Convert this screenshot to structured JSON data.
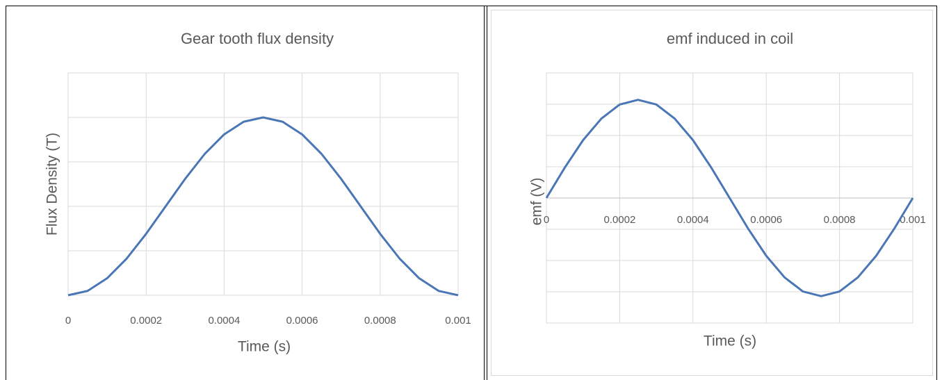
{
  "chart_data": [
    {
      "type": "line",
      "title": "Gear tooth flux density",
      "x_label": "Time (s)",
      "y_label": "Flux Density (T)",
      "x": [
        0,
        5e-05,
        0.0001,
        0.00015,
        0.0002,
        0.00025,
        0.0003,
        0.00035,
        0.0004,
        0.00045,
        0.0005,
        0.00055,
        0.0006,
        0.00065,
        0.0007,
        0.00075,
        0.0008,
        0.00085,
        0.0009,
        0.00095,
        0.001
      ],
      "values": [
        0,
        0.098,
        0.382,
        0.824,
        1.382,
        2,
        2.618,
        3.176,
        3.618,
        3.902,
        4,
        3.902,
        3.618,
        3.176,
        2.618,
        2,
        1.382,
        0.824,
        0.382,
        0.098,
        0
      ],
      "color": "#4a76b6",
      "xlim": [
        0,
        0.001
      ],
      "xticks": [
        0,
        0.0002,
        0.0004,
        0.0006,
        0.0008,
        0.001
      ],
      "ylim": [
        0,
        5
      ],
      "grid": true
    },
    {
      "type": "line",
      "title": "emf induced in coil",
      "x_label": "Time (s)",
      "y_label": "emf (V)",
      "x": [
        0,
        5e-05,
        0.0001,
        0.00015,
        0.0002,
        0.00025,
        0.0003,
        0.00035,
        0.0004,
        0.00045,
        0.0005,
        0.00055,
        0.0006,
        0.00065,
        0.0007,
        0.00075,
        0.0008,
        0.00085,
        0.0009,
        0.00095,
        0.001
      ],
      "values": [
        0,
        0.97,
        1.85,
        2.54,
        2.99,
        3.14,
        2.99,
        2.54,
        1.85,
        0.97,
        0,
        -0.97,
        -1.85,
        -2.54,
        -2.99,
        -3.14,
        -2.99,
        -2.54,
        -1.85,
        -0.97,
        0
      ],
      "color": "#4a76b6",
      "xlim": [
        0,
        0.001
      ],
      "xticks": [
        0,
        0.0002,
        0.0004,
        0.0006,
        0.0008,
        0.001
      ],
      "ylim": [
        -4,
        4
      ],
      "grid": true
    }
  ]
}
